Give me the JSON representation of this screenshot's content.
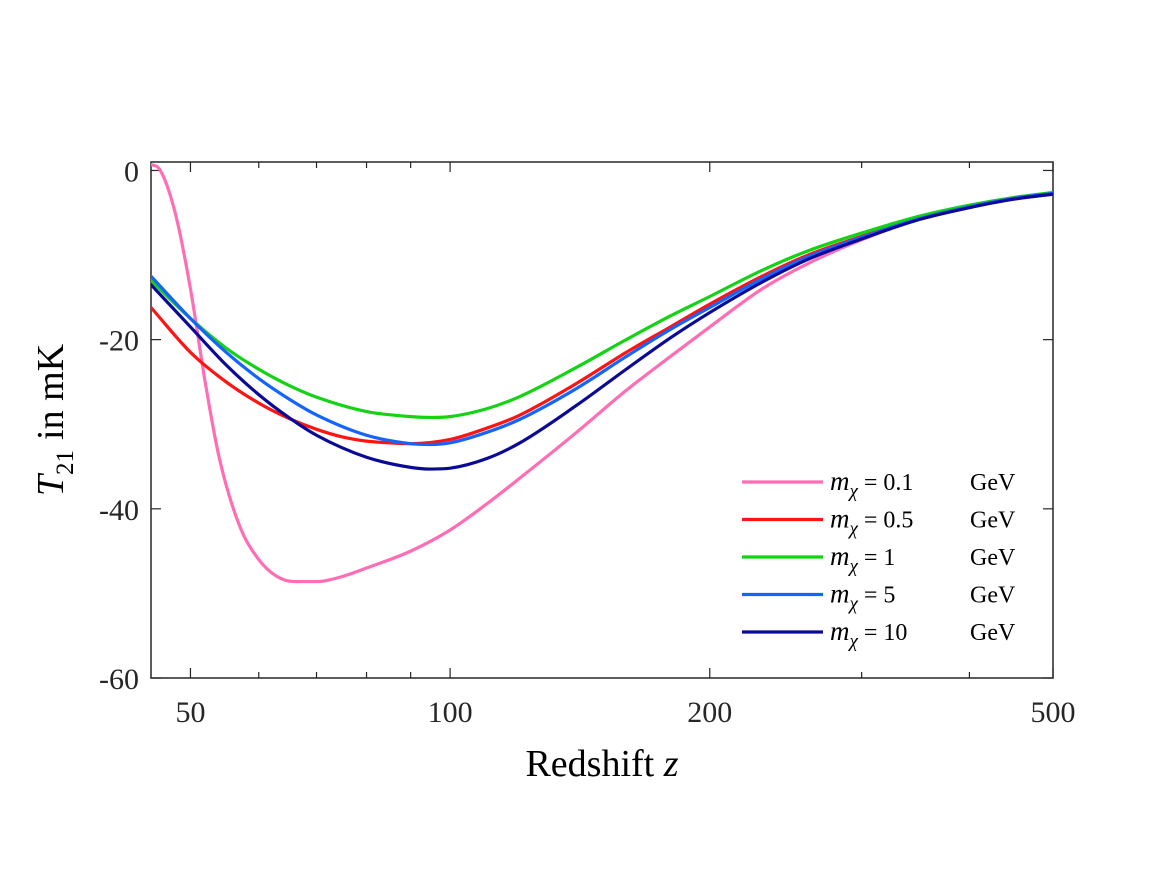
{
  "chart_data": {
    "type": "line",
    "title": "",
    "xlabel": "Redshift",
    "xlabel_var": "z",
    "ylabel_var": "T",
    "ylabel_sub": "21",
    "ylabel_unit": "in mK",
    "xscale": "log",
    "xlim": [
      45,
      500
    ],
    "ylim": [
      -60,
      1
    ],
    "xticks": [
      {
        "value": 50,
        "label": "50"
      },
      {
        "value": 100,
        "label": "100"
      },
      {
        "value": 200,
        "label": "200"
      },
      {
        "value": 500,
        "label": "500"
      }
    ],
    "yticks": [
      {
        "value": 0,
        "label": "0"
      },
      {
        "value": -20,
        "label": "-20"
      },
      {
        "value": -40,
        "label": "-40"
      },
      {
        "value": -60,
        "label": "-60"
      }
    ],
    "legend_position": "bottom-right",
    "series": [
      {
        "name": "m_χ = 0.1 GeV",
        "var": "m",
        "sub": "χ",
        "mass": "= 0.1",
        "unit": "GeV",
        "color": "#ff6eb4",
        "x": [
          45,
          46,
          48,
          50,
          52,
          54,
          57,
          60,
          63,
          66,
          70,
          75,
          80,
          90,
          100,
          110,
          120,
          140,
          160,
          180,
          200,
          230,
          260,
          300,
          350,
          400,
          450,
          500
        ],
        "y": [
          0.7,
          0.2,
          -5,
          -14,
          -25,
          -34,
          -42,
          -46,
          -48,
          -48.6,
          -48.6,
          -48,
          -47,
          -45,
          -42.5,
          -39.5,
          -36.5,
          -31,
          -26,
          -22,
          -18.5,
          -14,
          -11,
          -8.2,
          -5.7,
          -4.3,
          -3.4,
          -2.8
        ]
      },
      {
        "name": "m_χ = 0.5 GeV",
        "var": "m",
        "sub": "χ",
        "mass": "= 0.5",
        "unit": "GeV",
        "color": "#ff1414",
        "x": [
          45,
          50,
          55,
          60,
          65,
          70,
          75,
          80,
          85,
          90,
          100,
          110,
          120,
          140,
          160,
          180,
          200,
          230,
          260,
          300,
          350,
          400,
          450,
          500
        ],
        "y": [
          -16.2,
          -21.5,
          -25,
          -27.5,
          -29.3,
          -30.6,
          -31.5,
          -32,
          -32.2,
          -32.3,
          -31.8,
          -30.5,
          -29,
          -25.2,
          -21.5,
          -18.5,
          -15.8,
          -12.5,
          -10,
          -7.8,
          -5.6,
          -4.2,
          -3.3,
          -2.7
        ]
      },
      {
        "name": "m_χ = 1 GeV",
        "var": "m",
        "sub": "χ",
        "mass": "= 1",
        "unit": "GeV",
        "color": "#14d214",
        "x": [
          45,
          50,
          55,
          60,
          65,
          70,
          80,
          90,
          95,
          100,
          110,
          120,
          140,
          160,
          180,
          200,
          230,
          260,
          300,
          350,
          400,
          450,
          500
        ],
        "y": [
          -13,
          -17.5,
          -21,
          -23.5,
          -25.4,
          -26.8,
          -28.5,
          -29.1,
          -29.2,
          -29.1,
          -28.2,
          -26.8,
          -23.3,
          -20,
          -17.2,
          -14.9,
          -11.8,
          -9.5,
          -7.4,
          -5.4,
          -4.1,
          -3.2,
          -2.6
        ]
      },
      {
        "name": "m_χ = 5 GeV",
        "var": "m",
        "sub": "χ",
        "mass": "= 5",
        "unit": "GeV",
        "color": "#1464ff",
        "x": [
          45,
          50,
          55,
          60,
          65,
          70,
          80,
          90,
          95,
          100,
          110,
          120,
          140,
          160,
          180,
          200,
          230,
          260,
          300,
          350,
          400,
          450,
          500
        ],
        "y": [
          -12.5,
          -17.5,
          -21.5,
          -24.6,
          -27,
          -28.9,
          -31.3,
          -32.3,
          -32.4,
          -32.2,
          -31,
          -29.5,
          -25.8,
          -22,
          -18.8,
          -16.2,
          -12.8,
          -10.2,
          -7.9,
          -5.7,
          -4.3,
          -3.3,
          -2.7
        ]
      },
      {
        "name": "m_χ = 10 GeV",
        "var": "m",
        "sub": "χ",
        "mass": "= 10",
        "unit": "GeV",
        "color": "#0a0a96",
        "x": [
          45,
          50,
          55,
          60,
          65,
          70,
          80,
          90,
          95,
          100,
          110,
          120,
          140,
          160,
          180,
          200,
          230,
          260,
          300,
          350,
          400,
          450,
          500
        ],
        "y": [
          -13.5,
          -18.5,
          -23,
          -26.5,
          -29.2,
          -31.3,
          -33.9,
          -35.1,
          -35.3,
          -35.2,
          -34.1,
          -32.3,
          -27.8,
          -23.5,
          -19.8,
          -16.8,
          -13.2,
          -10.5,
          -8.1,
          -5.8,
          -4.4,
          -3.4,
          -2.8
        ]
      }
    ]
  }
}
